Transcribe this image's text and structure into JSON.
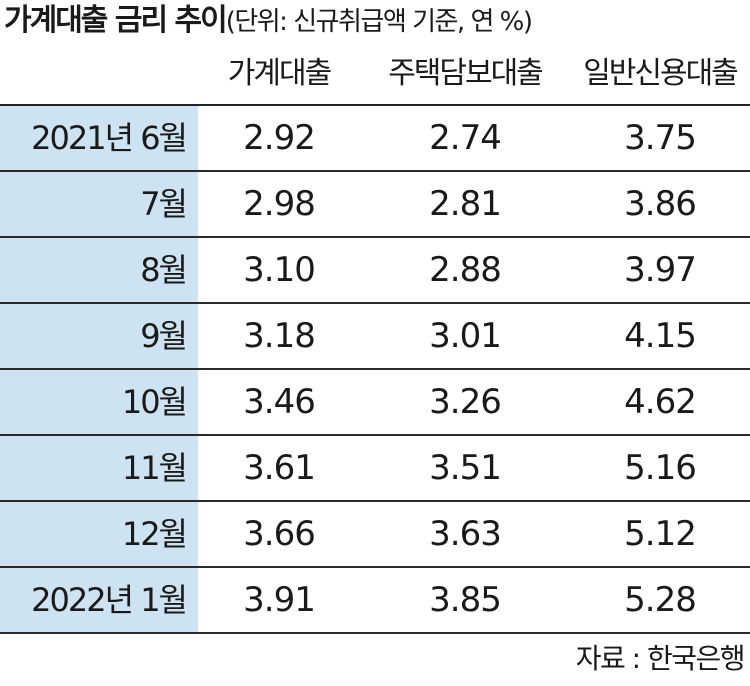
{
  "chart_data": {
    "type": "table",
    "title": "가계대출 금리 추이",
    "unit_note": "(단위: 신규취급액 기준, 연 %)",
    "columns": [
      "가계대출",
      "주택담보대출",
      "일반신용대출"
    ],
    "rows": [
      {
        "label": "2021년 6월",
        "values": [
          "2.92",
          "2.74",
          "3.75"
        ]
      },
      {
        "label": "7월",
        "values": [
          "2.98",
          "2.81",
          "3.86"
        ]
      },
      {
        "label": "8월",
        "values": [
          "3.10",
          "2.88",
          "3.97"
        ]
      },
      {
        "label": "9월",
        "values": [
          "3.18",
          "3.01",
          "4.15"
        ]
      },
      {
        "label": "10월",
        "values": [
          "3.46",
          "3.26",
          "4.62"
        ]
      },
      {
        "label": "11월",
        "values": [
          "3.61",
          "3.51",
          "5.16"
        ]
      },
      {
        "label": "12월",
        "values": [
          "3.66",
          "3.63",
          "5.12"
        ]
      },
      {
        "label": "2022년 1월",
        "values": [
          "3.91",
          "3.85",
          "5.28"
        ]
      }
    ],
    "source": "자료 : 한국은행"
  },
  "colors": {
    "label_background": "#cde3f1",
    "rule": "#2a2a2a",
    "text": "#1a1a1a"
  }
}
